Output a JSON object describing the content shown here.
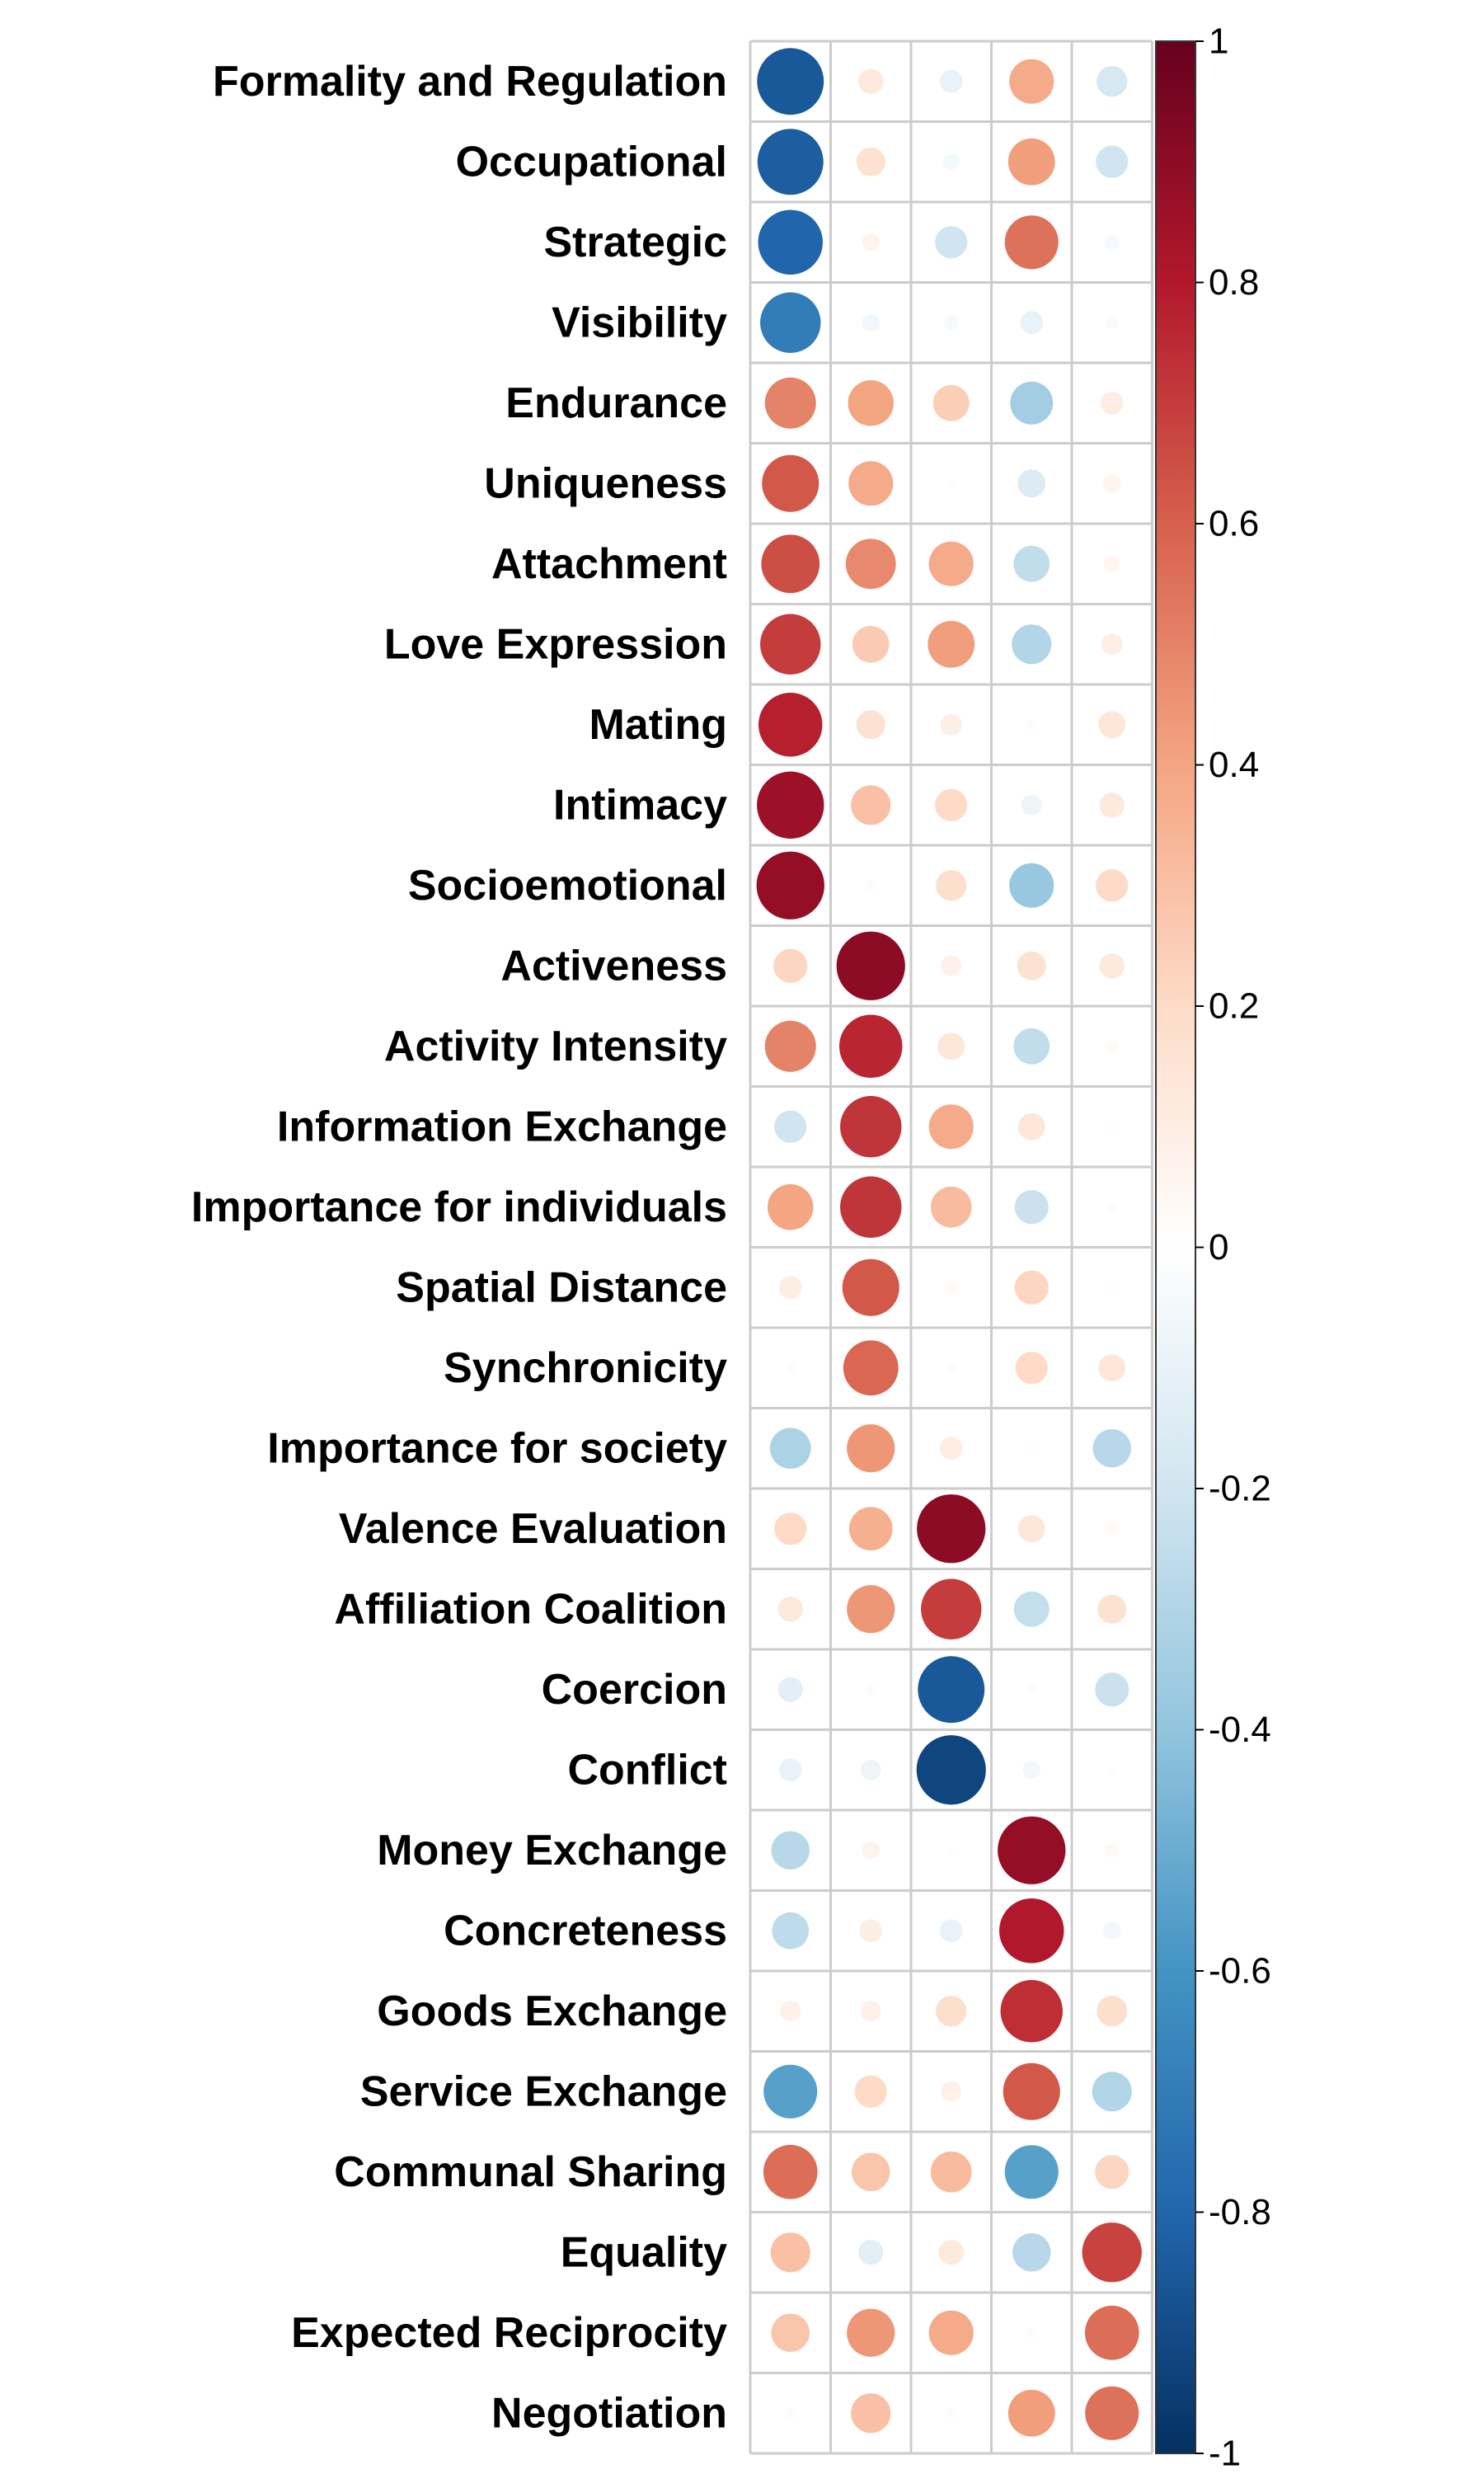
{
  "chart_data": {
    "type": "heatmap",
    "subtype": "correlation-circle-plot",
    "title": "",
    "xlabel": "",
    "ylabel": "",
    "columns": [
      "",
      "",
      "",
      "",
      ""
    ],
    "rows": [
      "Formality and Regulation",
      "Occupational",
      "Strategic",
      "Visibility",
      "Endurance",
      "Uniqueness",
      "Attachment",
      "Love Expression",
      "Mating",
      "Intimacy",
      "Socioemotional",
      "Activeness",
      "Activity Intensity",
      "Information Exchange",
      "Importance for individuals",
      "Spatial Distance",
      "Synchronicity",
      "Importance for society",
      "Valence Evaluation",
      "Affiliation Coalition",
      "Coercion",
      "Conflict",
      "Money Exchange",
      "Concreteness",
      "Goods Exchange",
      "Service Exchange",
      "Communal Sharing",
      "Equality",
      "Expected Reciprocity",
      "Negotiation"
    ],
    "values": [
      [
        -0.85,
        0.12,
        -0.1,
        0.38,
        -0.18
      ],
      [
        -0.83,
        0.16,
        -0.05,
        0.42,
        -0.2
      ],
      [
        -0.8,
        0.06,
        -0.2,
        0.55,
        -0.04
      ],
      [
        -0.7,
        -0.06,
        -0.04,
        -0.1,
        -0.03
      ],
      [
        0.5,
        0.4,
        0.25,
        -0.35,
        0.1
      ],
      [
        0.62,
        0.38,
        0.01,
        -0.15,
        0.06
      ],
      [
        0.65,
        0.48,
        0.38,
        -0.25,
        0.05
      ],
      [
        0.7,
        0.26,
        0.42,
        -0.3,
        0.09
      ],
      [
        0.78,
        0.16,
        0.09,
        0.02,
        0.14
      ],
      [
        0.86,
        0.3,
        0.2,
        -0.08,
        0.12
      ],
      [
        0.88,
        0.02,
        0.18,
        -0.38,
        0.2
      ],
      [
        0.22,
        0.9,
        0.08,
        0.16,
        0.12
      ],
      [
        0.5,
        0.76,
        0.14,
        -0.25,
        0.03
      ],
      [
        -0.2,
        0.72,
        0.38,
        0.14,
        0.01
      ],
      [
        0.4,
        0.72,
        0.32,
        -0.22,
        0.02
      ],
      [
        0.1,
        0.62,
        0.03,
        0.22,
        0.01
      ],
      [
        0.02,
        0.58,
        0.02,
        0.2,
        0.14
      ],
      [
        -0.32,
        0.44,
        0.1,
        0.01,
        -0.28
      ],
      [
        0.2,
        0.36,
        0.9,
        0.14,
        0.03
      ],
      [
        0.12,
        0.44,
        0.7,
        -0.24,
        0.16
      ],
      [
        -0.12,
        0.02,
        -0.85,
        0.02,
        -0.22
      ],
      [
        -0.1,
        -0.08,
        -0.92,
        -0.06,
        0.01
      ],
      [
        -0.28,
        0.06,
        0.01,
        0.88,
        0.04
      ],
      [
        -0.26,
        0.1,
        -0.1,
        0.8,
        -0.06
      ],
      [
        0.08,
        0.08,
        0.18,
        0.74,
        0.18
      ],
      [
        -0.55,
        0.2,
        0.08,
        0.62,
        -0.3
      ],
      [
        0.56,
        0.28,
        0.32,
        -0.55,
        0.22
      ],
      [
        0.3,
        -0.12,
        0.12,
        -0.28,
        0.68
      ],
      [
        0.28,
        0.44,
        0.38,
        0.02,
        0.56
      ],
      [
        0.02,
        0.3,
        0.02,
        0.42,
        0.55
      ]
    ],
    "value_range": [
      -1,
      1
    ],
    "colorbar": {
      "ticks": [
        1,
        0.8,
        0.6,
        0.4,
        0.2,
        0,
        -0.2,
        -0.4,
        -0.6,
        -0.8,
        -1
      ],
      "tick_labels": [
        "1",
        "0.8",
        "0.6",
        "0.4",
        "0.2",
        "0",
        "-0.2",
        "-0.4",
        "-0.6",
        "-0.8",
        "-1"
      ],
      "placement": "right"
    },
    "colormap": [
      "#053061",
      "#2166AC",
      "#4393C3",
      "#92C5DE",
      "#D1E5F0",
      "#FFFFFF",
      "#FDDBC7",
      "#F4A582",
      "#D6604D",
      "#B2182B",
      "#67001F"
    ],
    "grid": true,
    "legend": "none"
  }
}
